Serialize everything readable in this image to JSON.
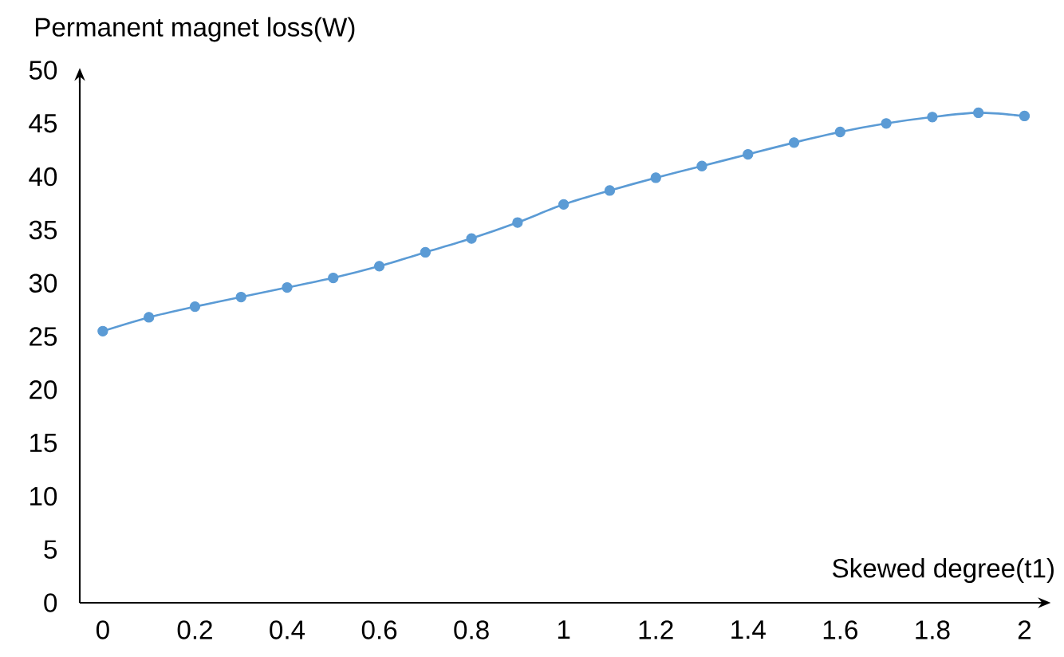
{
  "chart_data": {
    "type": "line",
    "xlabel": "Skewed degree(t1)",
    "ylabel": "Permanent magnet loss(W)",
    "x": [
      0,
      0.1,
      0.2,
      0.3,
      0.4,
      0.5,
      0.6,
      0.7,
      0.8,
      0.9,
      1.0,
      1.1,
      1.2,
      1.3,
      1.4,
      1.5,
      1.6,
      1.7,
      1.8,
      1.9,
      2.0
    ],
    "series": [
      {
        "color": "#5b9bd5",
        "values": [
          25.5,
          26.8,
          27.8,
          28.7,
          29.6,
          30.5,
          31.6,
          32.9,
          34.2,
          35.7,
          37.4,
          38.7,
          39.9,
          41.0,
          42.1,
          43.2,
          44.2,
          45.0,
          45.6,
          46.0,
          45.7
        ]
      }
    ],
    "xlim": [
      -0.05,
      2.05
    ],
    "ylim": [
      0,
      50
    ],
    "xticks": [
      0,
      0.2,
      0.4,
      0.6,
      0.8,
      1,
      1.2,
      1.4,
      1.6,
      1.8,
      2
    ],
    "yticks": [
      0,
      5,
      10,
      15,
      20,
      25,
      30,
      35,
      40,
      45,
      50
    ],
    "marker": "circle",
    "line_style": "solid"
  }
}
